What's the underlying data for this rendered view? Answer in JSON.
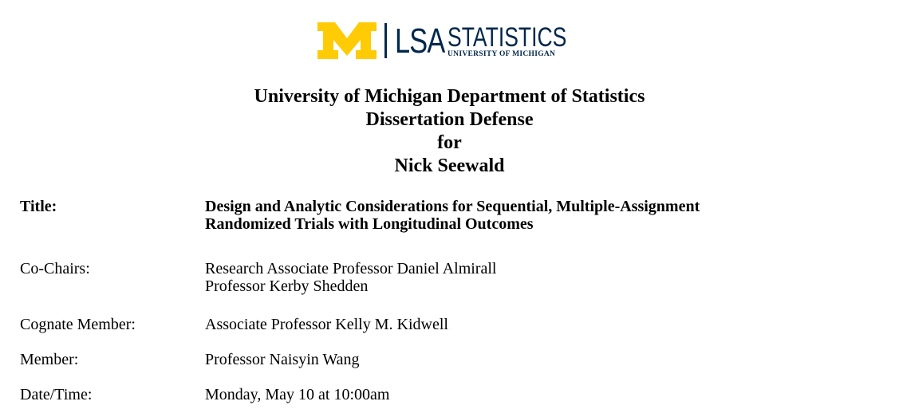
{
  "logo": {
    "lsa": "LSA",
    "department": "STATISTICS",
    "university": "UNIVERSITY OF MICHIGAN",
    "m_color": "#FFCB05",
    "text_color": "#00274C",
    "m_icon": "block-m-icon"
  },
  "heading": {
    "line1": "University of Michigan Department of Statistics",
    "line2": "Dissertation Defense",
    "line3": "for",
    "line4": "Nick Seewald"
  },
  "details": {
    "title": {
      "label": "Title:",
      "value_line1": "Design and Analytic Considerations for Sequential, Multiple-Assignment",
      "value_line2": "Randomized Trials with Longitudinal Outcomes"
    },
    "co_chairs": {
      "label": "Co-Chairs:",
      "value_line1": "Research Associate Professor Daniel Almirall",
      "value_line2": "Professor Kerby Shedden"
    },
    "cognate_member": {
      "label": "Cognate Member:",
      "value": "Associate Professor Kelly M. Kidwell"
    },
    "member": {
      "label": "Member:",
      "value": "Professor Naisyin Wang"
    },
    "date_time": {
      "label": "Date/Time:",
      "value": "Monday, May 10 at 10:00am"
    }
  }
}
